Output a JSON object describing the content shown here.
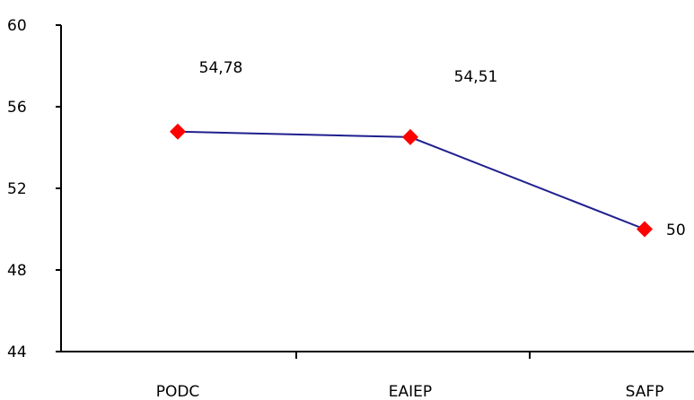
{
  "chart_data": {
    "type": "line",
    "categories": [
      "PODC",
      "EAIEP",
      "SAFP"
    ],
    "series": [
      {
        "values": [
          54.78,
          54.51,
          50
        ],
        "data_labels": [
          "54,78",
          "54,51",
          "50"
        ]
      }
    ],
    "ylim": [
      44,
      60
    ],
    "y_ticks": [
      44,
      48,
      52,
      56,
      60
    ],
    "y_tick_labels": [
      "44",
      "48",
      "52",
      "56",
      "60"
    ],
    "grid": false,
    "legend": "none",
    "colors": {
      "line": "#1f1f8f",
      "marker": "#ff0000",
      "axis": "#000000"
    },
    "marker_shape": "diamond"
  }
}
